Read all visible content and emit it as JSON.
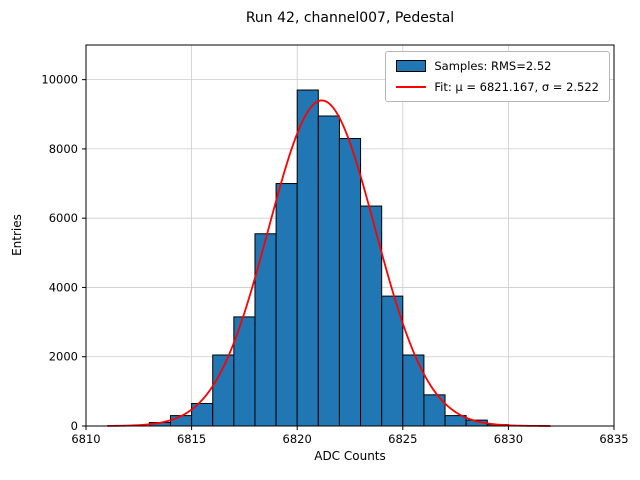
{
  "chart_data": {
    "type": "bar",
    "subtype": "histogram",
    "title": "Run 42, channel007, Pedestal",
    "xlabel": "ADC Counts",
    "ylabel": "Entries",
    "xlim": [
      6810,
      6835
    ],
    "ylim": [
      0,
      11000
    ],
    "xticks": [
      6810,
      6815,
      6820,
      6825,
      6830,
      6835
    ],
    "yticks": [
      0,
      2000,
      4000,
      6000,
      8000,
      10000
    ],
    "grid": true,
    "grid_color": "#cccccc",
    "bin_width": 1,
    "bin_left_edges": [
      6813,
      6814,
      6815,
      6816,
      6817,
      6818,
      6819,
      6820,
      6821,
      6822,
      6823,
      6824,
      6825,
      6826,
      6827,
      6828,
      6829
    ],
    "values": [
      100,
      300,
      650,
      2050,
      3150,
      5550,
      7000,
      9700,
      8950,
      8300,
      6350,
      3750,
      2050,
      900,
      300,
      170,
      40
    ],
    "bar_color": "#2077b4",
    "bar_edge_color": "#000000",
    "fit": {
      "mu": 6821.167,
      "sigma": 2.522,
      "amplitude": 9400,
      "color": "#ff0000",
      "range": [
        6811,
        6832
      ]
    },
    "legend_position": "upper right",
    "legend": [
      {
        "label": "Samples: RMS=2.52",
        "marker": "patch",
        "color": "#2077b4"
      },
      {
        "label": "Fit: μ = 6821.167, σ = 2.522",
        "marker": "line",
        "color": "#ff0000"
      }
    ]
  }
}
